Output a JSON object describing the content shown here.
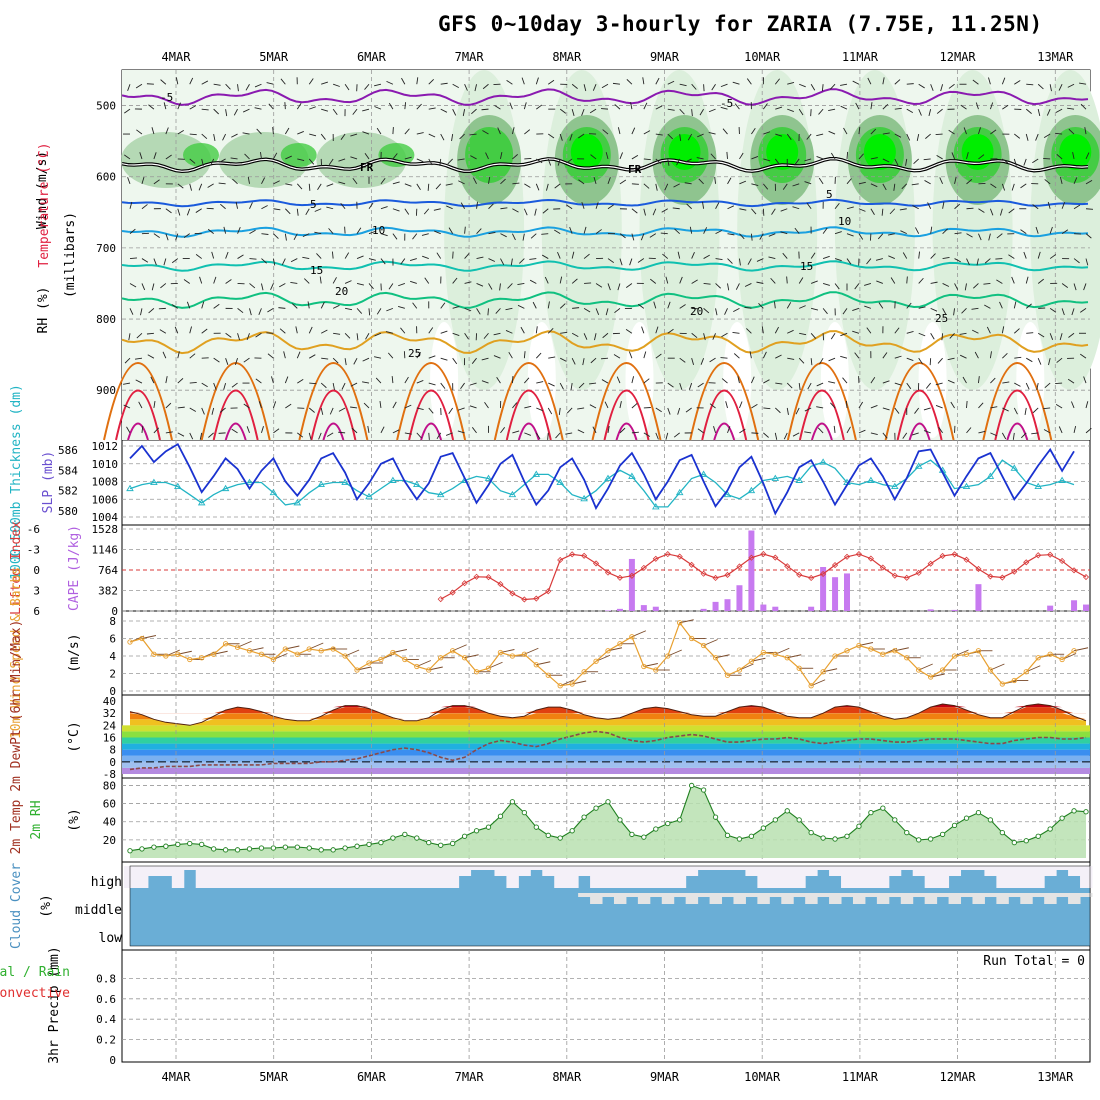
{
  "title": "GFS 0~10day 3-hourly for ZARIA (7.75E, 11.25N)",
  "colors": {
    "rh_light": "#dcefdc",
    "rh_mid": "#8fc48f",
    "rh_green": "#44cc44",
    "rh_bright": "#00ee00",
    "temp_purple": "#8a1ab0",
    "temp_blue": "#1a5adc",
    "temp_cyan": "#1aa0e0",
    "temp_teal": "#10c0b0",
    "temp_green": "#10c080",
    "temp_orange": "#e0a020",
    "temp_dkorange": "#e07010",
    "temp_red": "#e02040",
    "slp_line": "#1a32d0",
    "thickness_line": "#22b4c4",
    "lifted_index": "#d83a3a",
    "cape_bar": "#c77af0",
    "wind_speed": "#e8a030",
    "wind_barb": "#7a4a2a",
    "temp_fill_hot": "#d01010",
    "dewpoint": "#8a4a4a",
    "rh2m": "#30b030",
    "cloud": "#6aaed6",
    "cloud_clear": "#f4f0f8",
    "cloud_gap": "#e4e4e4",
    "precip_total": "#30b030",
    "precip_convective": "#e03030"
  },
  "dates": [
    "4MAR",
    "5MAR",
    "6MAR",
    "7MAR",
    "8MAR",
    "9MAR",
    "10MAR",
    "11MAR",
    "12MAR",
    "13MAR"
  ],
  "panels": {
    "upper": {
      "ylabel": "(millibars)",
      "rh_label": "RH (%)",
      "temp_label": "Temperature (°C)",
      "wind_label": "Wind (m/s)",
      "ticks": [
        "500",
        "600",
        "700",
        "800",
        "900"
      ]
    },
    "slp": {
      "ylabel_left": "1000-500mb Thickness (dm)",
      "ylabel_right": "SLP (mb)",
      "left_ticks": [
        "586",
        "584",
        "582",
        "580"
      ],
      "right_ticks": [
        "1012",
        "1010",
        "1008",
        "1006",
        "1004"
      ]
    },
    "cape": {
      "ylabel_left": "Lifted Index",
      "ylabel_right": "CAPE (J/kg)",
      "left_ticks": [
        "-6",
        "-3",
        "0",
        "3",
        "6"
      ],
      "right_ticks": [
        "1528",
        "1146",
        "764",
        "382",
        "0"
      ]
    },
    "wind10": {
      "ylabel": "10m Wind Speed & Barbs",
      "unit": "(m/s)",
      "ticks": [
        "8",
        "6",
        "4",
        "2",
        "0"
      ]
    },
    "temp2m": {
      "ylabel": "2m Temp 2m DewPt (6hr Min/Max)",
      "unit": "(°C)",
      "ticks": [
        "40",
        "32",
        "24",
        "16",
        "8",
        "0",
        "-8"
      ]
    },
    "rh2m": {
      "ylabel": "2m RH",
      "unit": "(%)",
      "ticks": [
        "80",
        "60",
        "40",
        "20"
      ]
    },
    "cloud": {
      "ylabel": "Cloud Cover",
      "unit": "(%)",
      "levels": [
        "high",
        "middle",
        "low"
      ]
    },
    "precip": {
      "ylabel": "3hr Precip (mm)",
      "legend_total": "Total / Rain",
      "legend_convective": "Convective",
      "run_total": "Run Total = 0",
      "ticks": [
        "0.8",
        "0.6",
        "0.4",
        "0.2",
        "0"
      ]
    }
  },
  "chart_data": [
    {
      "type": "line",
      "name": "SLP (mb)",
      "x_unit": "3-hourly steps from 4MAR",
      "values": [
        1010.6,
        1012.0,
        1010.2,
        1011.4,
        1012.2,
        1009.6,
        1006.8,
        1008.6,
        1010.6,
        1009.4,
        1007.2,
        1009.2,
        1010.6,
        1008.0,
        1006.4,
        1008.2,
        1010.6,
        1011.2,
        1009.0,
        1006.0,
        1007.8,
        1010.0,
        1010.6,
        1008.0,
        1006.0,
        1007.8,
        1010.8,
        1011.2,
        1008.4,
        1005.6,
        1007.6,
        1010.0,
        1011.0,
        1008.0,
        1005.4,
        1007.0,
        1009.6,
        1010.6,
        1008.2,
        1005.0,
        1007.2,
        1009.8,
        1011.2,
        1008.8,
        1006.0,
        1008.0,
        1010.4,
        1011.0,
        1008.0,
        1005.2,
        1007.0,
        1009.6,
        1010.8,
        1007.8,
        1004.4,
        1006.8,
        1009.6,
        1010.4,
        1008.0,
        1005.4,
        1007.6,
        1009.8,
        1010.6,
        1008.6,
        1006.0,
        1008.4,
        1011.4,
        1011.6,
        1009.0,
        1006.4,
        1008.6,
        1010.6,
        1011.2,
        1008.6,
        1006.0,
        1007.8,
        1009.8,
        1011.6,
        1009.2,
        1011.4
      ]
    },
    {
      "type": "line",
      "name": "1000-500mb Thickness (dm)",
      "values": [
        582.2,
        582.6,
        582.8,
        582.8,
        582.4,
        581.6,
        580.8,
        581.6,
        582.2,
        582.6,
        582.8,
        582.8,
        581.8,
        580.6,
        580.8,
        581.8,
        582.6,
        582.8,
        582.8,
        582.0,
        581.4,
        582.2,
        583.0,
        583.0,
        582.6,
        581.8,
        581.6,
        582.2,
        583.0,
        583.4,
        583.2,
        582.0,
        581.6,
        582.6,
        583.6,
        583.6,
        582.8,
        581.6,
        581.2,
        582.0,
        583.2,
        584.0,
        583.4,
        582.0,
        580.4,
        580.4,
        581.8,
        583.2,
        583.6,
        582.8,
        581.6,
        581.2,
        582.0,
        583.0,
        583.2,
        583.4,
        583.0,
        584.4,
        584.8,
        584.2,
        582.8,
        582.6,
        583.0,
        582.6,
        582.4,
        583.2,
        584.4,
        585.0,
        584.0,
        582.2,
        582.4,
        582.6,
        583.4,
        585.0,
        584.2,
        582.8,
        582.4,
        582.6,
        583.0,
        582.6
      ]
    },
    {
      "type": "bar",
      "name": "CAPE (J/kg)",
      "values": [
        0,
        0,
        0,
        0,
        0,
        0,
        0,
        0,
        0,
        0,
        0,
        0,
        0,
        0,
        0,
        0,
        0,
        0,
        0,
        0,
        0,
        0,
        0,
        0,
        0,
        0,
        0,
        0,
        0,
        0,
        0,
        0,
        0,
        0,
        0,
        0,
        0,
        0,
        0,
        0,
        10,
        40,
        970,
        110,
        80,
        0,
        0,
        0,
        40,
        170,
        220,
        480,
        1500,
        120,
        80,
        0,
        0,
        80,
        820,
        630,
        700,
        0,
        0,
        0,
        0,
        0,
        0,
        30,
        0,
        20,
        0,
        500,
        0,
        0,
        0,
        0,
        0,
        100,
        0,
        200,
        120
      ]
    },
    {
      "type": "line",
      "name": "10m Wind Speed (m/s)",
      "values": [
        5.6,
        6.0,
        4.2,
        4.0,
        4.2,
        3.6,
        3.8,
        4.2,
        5.4,
        5.0,
        4.6,
        4.2,
        3.6,
        4.8,
        4.2,
        4.8,
        4.6,
        4.8,
        4.0,
        2.4,
        3.2,
        3.6,
        4.4,
        3.6,
        2.8,
        2.4,
        3.8,
        4.6,
        3.8,
        2.2,
        2.6,
        4.4,
        4.0,
        4.2,
        3.0,
        1.8,
        0.6,
        0.8,
        2.2,
        3.4,
        4.6,
        5.4,
        6.2,
        2.8,
        2.4,
        4.0,
        7.8,
        6.0,
        5.2,
        3.8,
        1.8,
        2.4,
        3.4,
        4.4,
        4.2,
        3.8,
        2.6,
        0.6,
        2.2,
        4.0,
        4.6,
        5.2,
        4.8,
        4.2,
        4.6,
        3.8,
        2.4,
        1.6,
        2.4,
        4.0,
        4.2,
        4.6,
        2.4,
        0.8,
        1.2,
        2.2,
        3.8,
        4.2,
        3.6,
        4.6
      ]
    },
    {
      "type": "area",
      "name": "2m Temp (°C)",
      "values": [
        33,
        31,
        28,
        26,
        25,
        24,
        26,
        30,
        34,
        36,
        35,
        33,
        30,
        28,
        27,
        27,
        30,
        34,
        37,
        37,
        35,
        32,
        29,
        27,
        27,
        29,
        34,
        37,
        37,
        35,
        32,
        30,
        29,
        30,
        34,
        36,
        36,
        34,
        31,
        29,
        28,
        29,
        32,
        35,
        36,
        35,
        33,
        31,
        30,
        30,
        33,
        36,
        37,
        36,
        33,
        30,
        29,
        29,
        32,
        36,
        37,
        36,
        33,
        30,
        28,
        29,
        32,
        36,
        38,
        37,
        34,
        31,
        29,
        29,
        33,
        37,
        38,
        37,
        34,
        30,
        27
      ]
    },
    {
      "type": "line",
      "name": "2m DewPt (°C)",
      "values": [
        -5,
        -4,
        -4,
        -3,
        -3,
        -3,
        -2,
        -2,
        -2,
        -2,
        -2,
        -2,
        -1,
        -1,
        -1,
        -1,
        0,
        0,
        1,
        2,
        4,
        6,
        8,
        9,
        8,
        6,
        3,
        1,
        3,
        8,
        12,
        14,
        13,
        11,
        10,
        12,
        15,
        17,
        19,
        20,
        19,
        16,
        14,
        13,
        14,
        16,
        17,
        18,
        17,
        15,
        13,
        13,
        14,
        15,
        15,
        16,
        15,
        13,
        12,
        13,
        14,
        15,
        15,
        14,
        13,
        13,
        14,
        15,
        15,
        15,
        14,
        13,
        12,
        12,
        14,
        15,
        16,
        16,
        15,
        15,
        16
      ]
    },
    {
      "type": "area",
      "name": "2m RH (%)",
      "values": [
        8,
        10,
        12,
        13,
        15,
        16,
        15,
        10,
        9,
        9,
        10,
        11,
        11,
        12,
        12,
        11,
        9,
        9,
        11,
        13,
        15,
        17,
        22,
        26,
        22,
        17,
        14,
        16,
        24,
        30,
        34,
        46,
        62,
        50,
        34,
        25,
        22,
        30,
        45,
        55,
        62,
        42,
        26,
        23,
        32,
        38,
        42,
        80,
        75,
        45,
        25,
        21,
        24,
        33,
        42,
        52,
        42,
        28,
        22,
        21,
        24,
        35,
        50,
        55,
        42,
        28,
        20,
        21,
        26,
        36,
        44,
        50,
        42,
        28,
        17,
        19,
        24,
        32,
        44,
        52,
        51
      ]
    },
    {
      "type": "bar",
      "name": "3hr Precip (mm)",
      "values": [
        0
      ],
      "ylim": [
        0,
        1
      ]
    }
  ]
}
